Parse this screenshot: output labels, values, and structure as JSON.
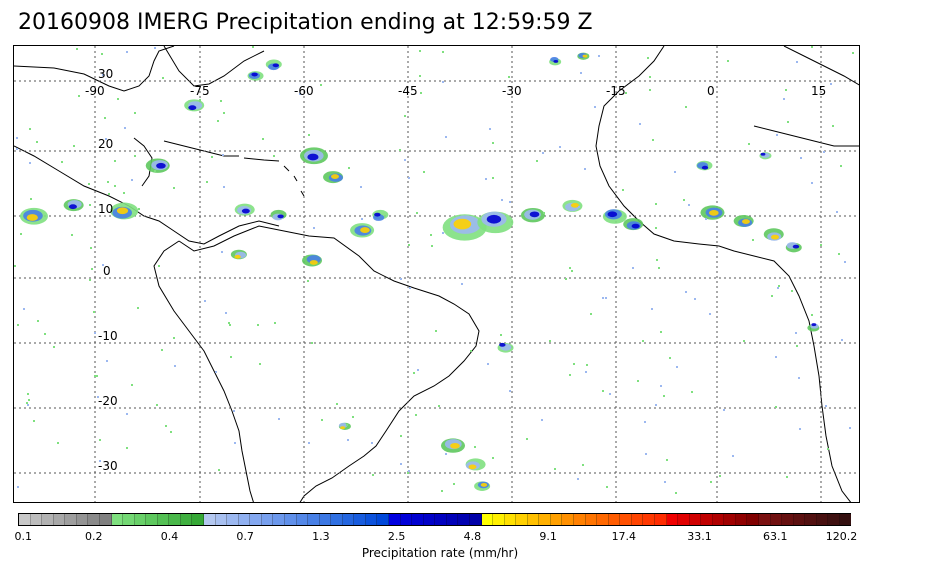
{
  "title": "20160908 IMERG Precipitation ending at 12:59:59 Z",
  "map": {
    "longitude_labels": [
      "-90",
      "-75",
      "-60",
      "-45",
      "-30",
      "-15",
      "0",
      "15"
    ],
    "latitude_labels": [
      "30",
      "20",
      "10",
      "0",
      "-10",
      "-20",
      "-30"
    ],
    "grid": true,
    "grid_style": "dotted"
  },
  "colorbar": {
    "label": "Precipitation rate (mm/hr)",
    "tick_labels": [
      "0.1",
      "0.2",
      "0.4",
      "0.7",
      "1.3",
      "2.5",
      "4.8",
      "9.1",
      "17.4",
      "33.1",
      "63.1",
      "120.2"
    ],
    "colors": [
      "#c8c8c8",
      "#bdbdbd",
      "#b2b2b2",
      "#a8a8a8",
      "#9e9e9e",
      "#949494",
      "#8a8a8a",
      "#808080",
      "#7fe07f",
      "#74d874",
      "#69d069",
      "#5ec85e",
      "#54c054",
      "#4ab84a",
      "#40b040",
      "#36a836",
      "#b4c8f0",
      "#a8c0f0",
      "#9cb8f0",
      "#90b0f0",
      "#84a8f0",
      "#78a0ee",
      "#6c98ec",
      "#6090ea",
      "#5488e8",
      "#4880e6",
      "#3c78e4",
      "#3070e2",
      "#2466e0",
      "#185cde",
      "#0c52dc",
      "#0048da",
      "#0000e0",
      "#0000d8",
      "#0000d0",
      "#0000c8",
      "#0000c0",
      "#0000b8",
      "#0000b0",
      "#0000a8",
      "#ffff00",
      "#fff000",
      "#ffe000",
      "#ffd000",
      "#ffc000",
      "#ffb000",
      "#ffa000",
      "#ff9000",
      "#ff8000",
      "#ff7400",
      "#ff6800",
      "#ff5c00",
      "#ff5000",
      "#ff4400",
      "#ff3800",
      "#ff2c00",
      "#f00000",
      "#e00000",
      "#d00000",
      "#c00000",
      "#b00000",
      "#a00000",
      "#900000",
      "#800000",
      "#7a1010",
      "#701010",
      "#661010",
      "#5c1010",
      "#521010",
      "#481010",
      "#3e1010",
      "#341010"
    ]
  }
}
